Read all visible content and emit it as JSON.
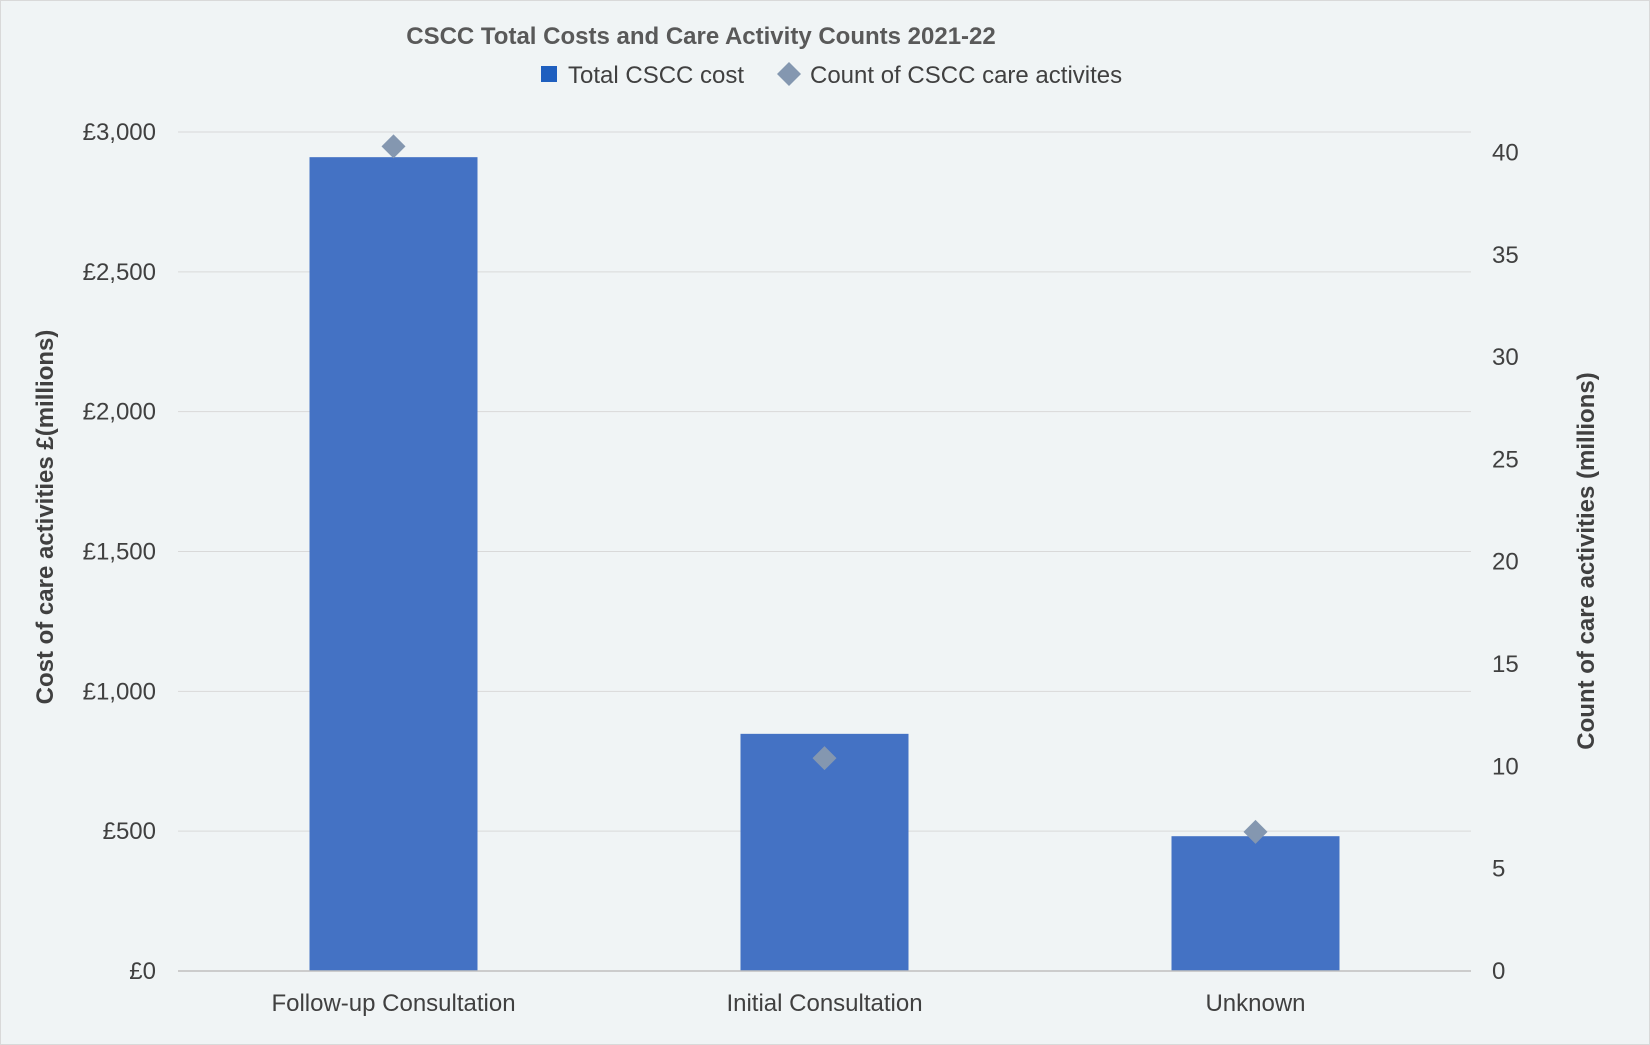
{
  "chart_data": {
    "type": "bar",
    "title": "CSCC Total Costs and Care Activity Counts 2021-22",
    "categories": [
      "Follow-up Consultation",
      "Initial Consultation",
      "Unknown"
    ],
    "series": [
      {
        "name": "Total CSCC cost",
        "type": "bar",
        "axis": "left",
        "color": "#4472c4",
        "legend_color": "#1f5fbf",
        "values": [
          2910,
          848,
          482
        ]
      },
      {
        "name": "Count of CSCC care activites",
        "type": "scatter",
        "marker": "diamond",
        "axis": "right",
        "color": "#8497b0",
        "values": [
          40.3,
          10.4,
          6.8
        ]
      }
    ],
    "ylabel": "Cost of care activities £(millions)",
    "ylim": [
      0,
      3000
    ],
    "yticks": [
      "£0",
      "£500",
      "£1,000",
      "£1,500",
      "£2,000",
      "£2,500",
      "£3,000"
    ],
    "y2label": "Count of care activities (millions)",
    "y2lim": [
      0,
      41
    ],
    "y2ticks": [
      "0",
      "5",
      "10",
      "15",
      "20",
      "25",
      "30",
      "35",
      "40"
    ],
    "xlabel": "",
    "grid": true,
    "legend_position": "top-center"
  }
}
